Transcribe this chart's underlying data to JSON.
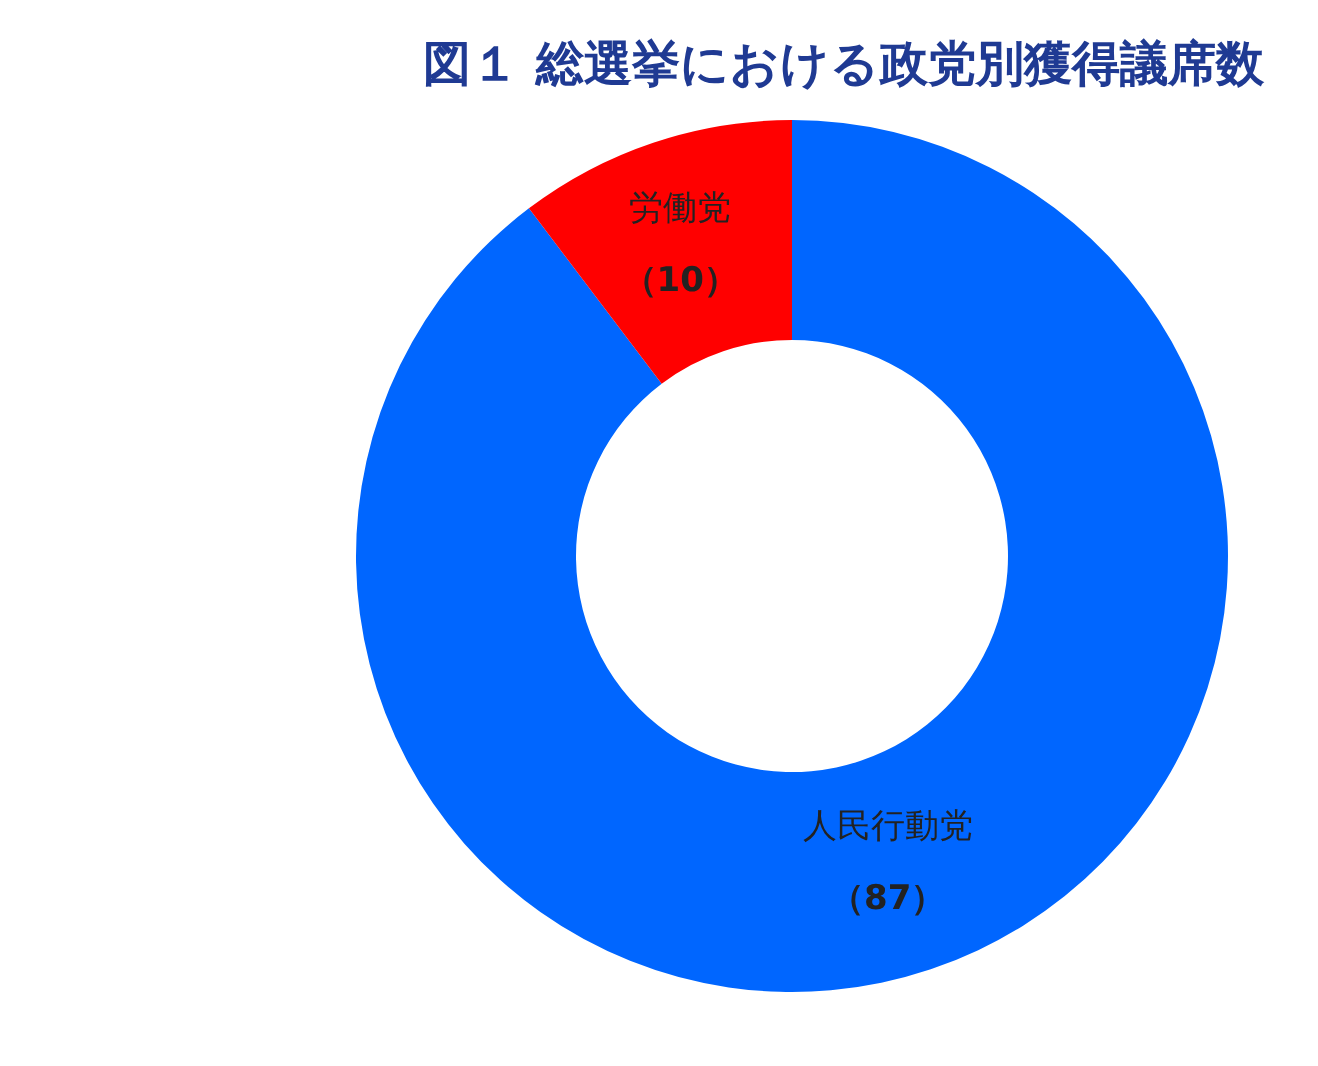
{
  "chart_data": {
    "type": "donut",
    "title": "図１ 総選挙における政党別獲得議席数",
    "categories": [
      "人民行動党",
      "労働党"
    ],
    "values": [
      87,
      10
    ],
    "colors": [
      "#0066ff",
      "#ff0000"
    ],
    "value_labels": [
      "（87）",
      "（10）"
    ]
  }
}
